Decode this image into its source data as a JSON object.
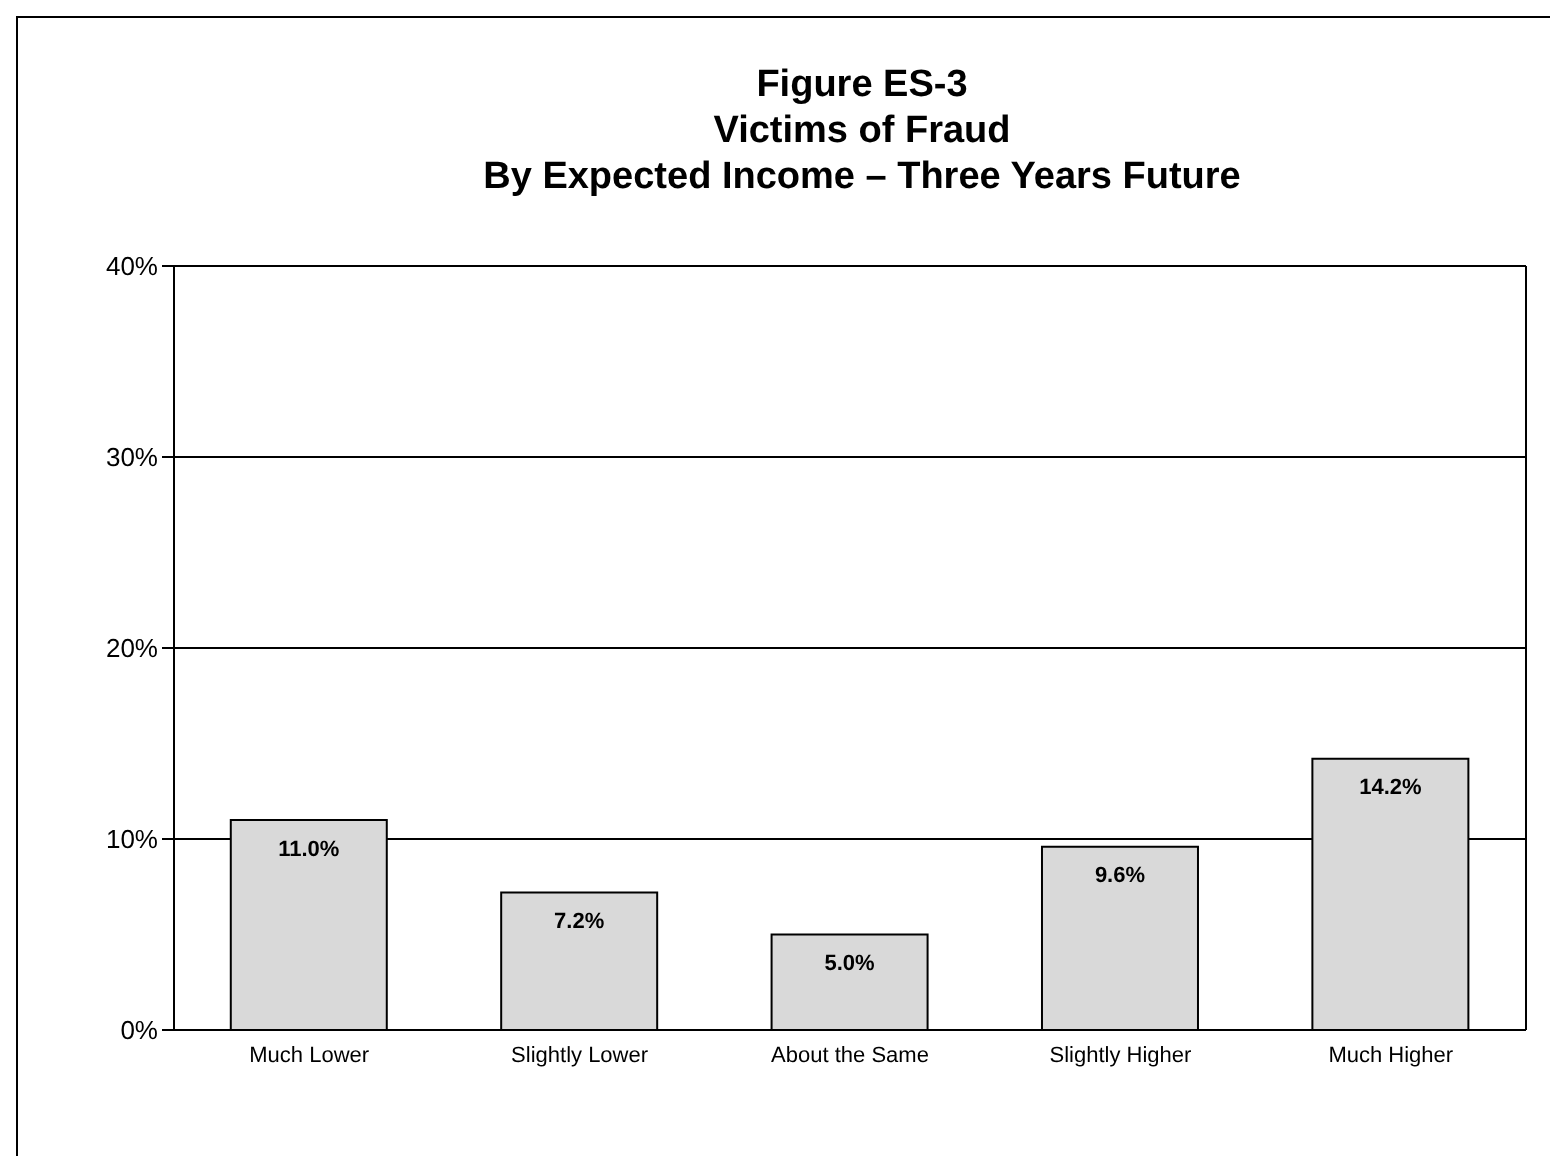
{
  "chart_data": {
    "type": "bar",
    "title": "Figure ES-3\nVictims of Fraud\nBy Expected Income – Three Years Future",
    "categories": [
      "Much Lower",
      "Slightly Lower",
      "About the Same",
      "Slightly Higher",
      "Much Higher"
    ],
    "values": [
      11.0,
      7.2,
      5.0,
      9.6,
      14.2
    ],
    "value_labels": [
      "11.0%",
      "7.2%",
      "5.0%",
      "9.6%",
      "14.2%"
    ],
    "color": "#d9d9d9",
    "ylim": [
      0,
      40
    ],
    "yticks": [
      {
        "value": 0,
        "label": "0%"
      },
      {
        "value": 10,
        "label": "10%"
      },
      {
        "value": 20,
        "label": "20%"
      },
      {
        "value": 30,
        "label": "30%"
      },
      {
        "value": 40,
        "label": "40%"
      }
    ],
    "grid": "y"
  }
}
